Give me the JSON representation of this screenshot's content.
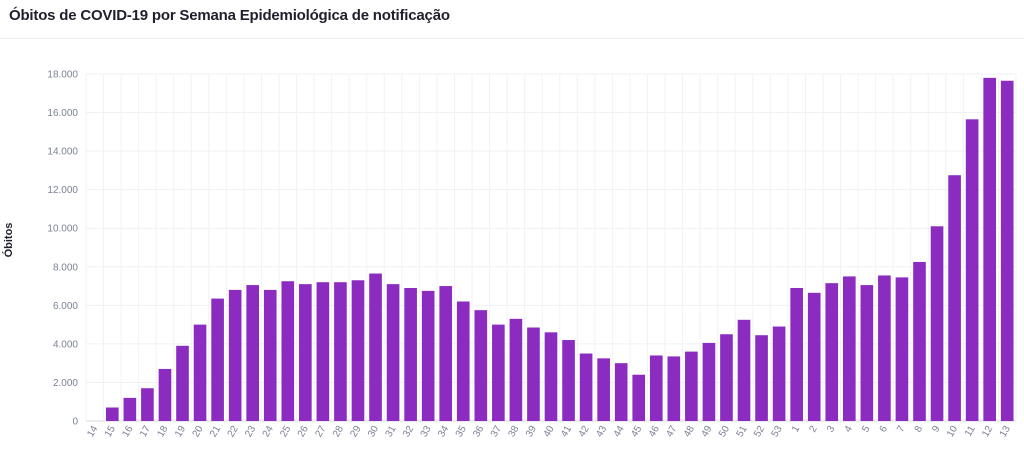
{
  "title": "Óbitos de COVID-19 por Semana Epidemiológica de notificação",
  "chart_data": {
    "type": "bar",
    "ylabel": "Óbitos",
    "xlabel": "",
    "ylim": [
      0,
      18000
    ],
    "yticks": [
      0,
      2000,
      4000,
      6000,
      8000,
      10000,
      12000,
      14000,
      16000,
      18000
    ],
    "ytick_labels": [
      "0",
      "2.000",
      "4.000",
      "6.000",
      "8.000",
      "10.000",
      "12.000",
      "14.000",
      "16.000",
      "18.000"
    ],
    "grid": true,
    "bar_color": "#8b2bbf",
    "categories": [
      "14",
      "15",
      "16",
      "17",
      "18",
      "19",
      "20",
      "21",
      "22",
      "23",
      "24",
      "25",
      "26",
      "27",
      "28",
      "29",
      "30",
      "31",
      "32",
      "33",
      "34",
      "35",
      "36",
      "37",
      "38",
      "39",
      "40",
      "41",
      "42",
      "43",
      "44",
      "45",
      "46",
      "47",
      "48",
      "49",
      "50",
      "51",
      "52",
      "53",
      "1",
      "2",
      "3",
      "4",
      "5",
      "6",
      "7",
      "8",
      "9",
      "10",
      "11",
      "12",
      "13"
    ],
    "values": [
      0,
      700,
      1200,
      1700,
      2700,
      3900,
      5000,
      6350,
      6800,
      7050,
      6800,
      7250,
      7100,
      7200,
      7200,
      7300,
      7650,
      7100,
      6900,
      6750,
      7000,
      6200,
      5750,
      5000,
      5300,
      4850,
      4600,
      4200,
      3500,
      3250,
      3000,
      2400,
      3400,
      3350,
      3600,
      4050,
      4500,
      5250,
      4450,
      4900,
      6900,
      6650,
      7150,
      7500,
      7050,
      7550,
      7450,
      8250,
      10100,
      12750,
      15650,
      17800,
      17650
    ]
  }
}
